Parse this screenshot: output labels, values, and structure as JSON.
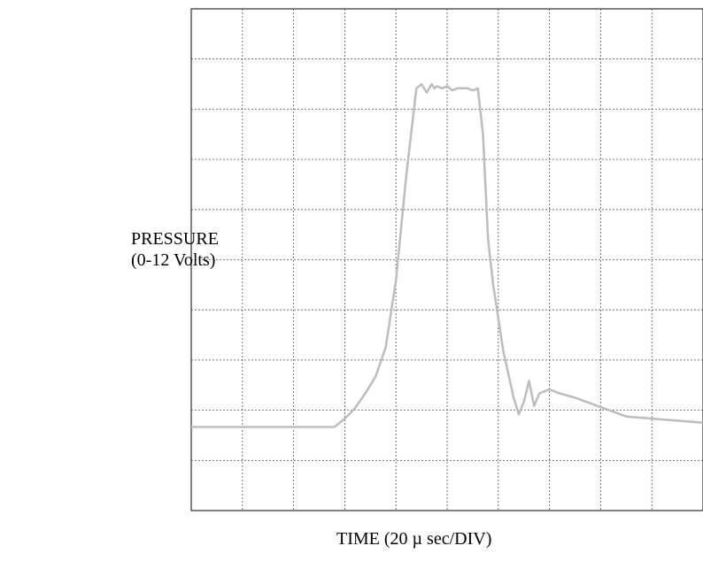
{
  "chart_data": {
    "type": "line",
    "xlabel": "TIME (20 µ sec/DIV)",
    "ylabel_lines": [
      "PRESSURE",
      "(0-12 Volts)"
    ],
    "xlim": [
      0,
      200
    ],
    "ylim": [
      0,
      12
    ],
    "x_divisions": 10,
    "y_divisions": 10,
    "grid": true,
    "colors": {
      "trace": "#bdbdbd",
      "grid": "#555555",
      "frame": "#000000"
    },
    "series": [
      {
        "x": [
          0,
          12,
          24,
          36,
          48,
          56,
          60,
          64,
          68,
          72,
          76,
          80,
          84,
          88,
          90,
          92,
          94,
          95,
          96,
          98,
          100,
          102,
          104,
          106,
          108,
          110,
          112,
          114,
          116,
          118,
          122,
          126,
          128,
          130,
          132,
          134,
          136,
          140,
          144,
          150,
          170,
          200
        ],
        "y": [
          2.0,
          2.0,
          2.0,
          2.0,
          2.0,
          2.0,
          2.2,
          2.45,
          2.8,
          3.2,
          3.9,
          5.5,
          8.0,
          10.1,
          10.2,
          10.0,
          10.2,
          10.1,
          10.15,
          10.1,
          10.15,
          10.05,
          10.1,
          10.1,
          10.1,
          10.05,
          10.1,
          9.0,
          6.5,
          5.4,
          3.8,
          2.7,
          2.3,
          2.6,
          3.1,
          2.5,
          2.8,
          2.9,
          2.8,
          2.7,
          2.25,
          2.1
        ]
      }
    ]
  }
}
